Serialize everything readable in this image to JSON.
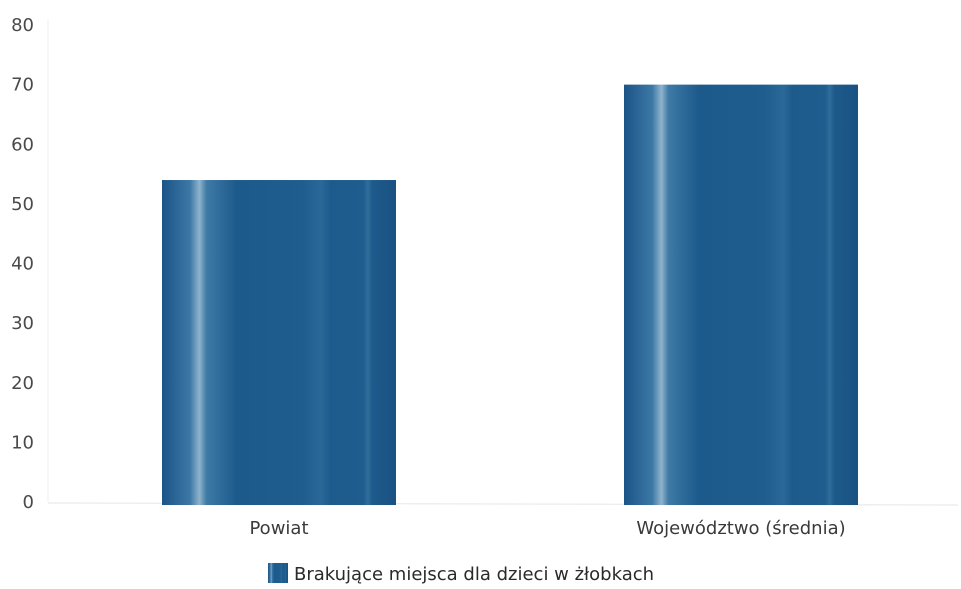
{
  "chart_data": {
    "type": "bar",
    "categories": [
      "Powiat",
      "Województwo (średnia)"
    ],
    "series": [
      {
        "name": "Brakujące miejsca dla dzieci w żłobkach",
        "values": [
          54,
          70
        ],
        "color": "#1f5d8f"
      }
    ],
    "ylim": [
      0,
      80
    ],
    "yticks": [
      0,
      10,
      20,
      30,
      40,
      50,
      60,
      70,
      80
    ],
    "grid": false,
    "legend_position": "bottom-center",
    "colors": {
      "bar": "#1f5d8f",
      "bar_dark": "#174e7c",
      "axis": "#e6e6e6",
      "tick_text": "#4a4a4a"
    }
  }
}
